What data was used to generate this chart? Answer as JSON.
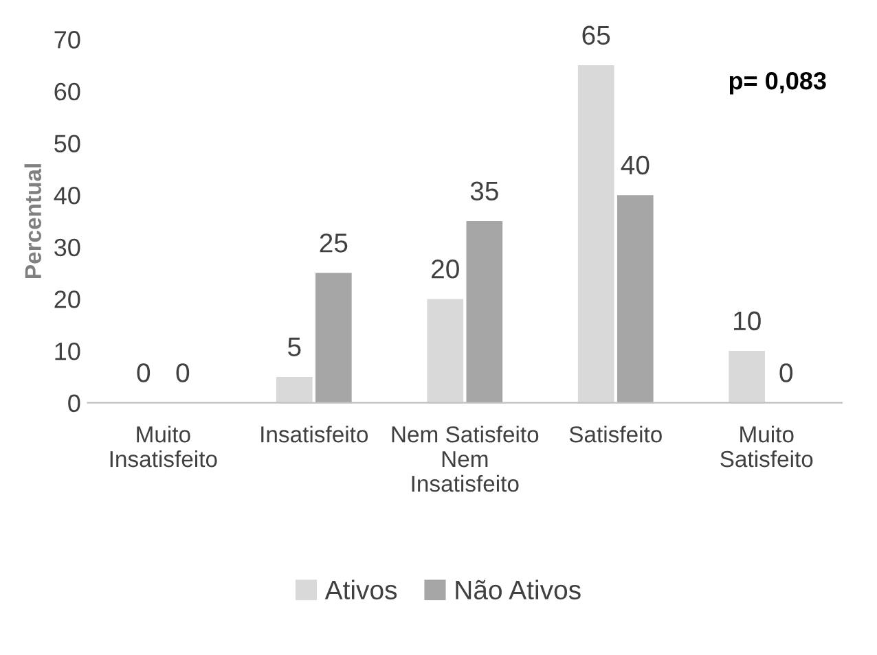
{
  "chart_data": {
    "type": "bar",
    "ylabel": "Percentual",
    "categories": [
      "Muito\nInsatisfeito",
      "Insatisfeito",
      "Nem Satisfeito\nNem\nInsatisfeito",
      "Satisfeito",
      "Muito\nSatisfeito"
    ],
    "series": [
      {
        "name": "Ativos",
        "color": "#d9d9d9",
        "values": [
          0,
          5,
          20,
          65,
          10
        ]
      },
      {
        "name": "Não Ativos",
        "color": "#a6a6a6",
        "values": [
          0,
          25,
          35,
          40,
          0
        ]
      }
    ],
    "ylim": [
      0,
      70
    ],
    "yticks": [
      0,
      10,
      20,
      30,
      40,
      50,
      60,
      70
    ],
    "data_labels": true,
    "grid": false,
    "legend": "bottom",
    "annotations": [
      "p= 0,083"
    ]
  }
}
